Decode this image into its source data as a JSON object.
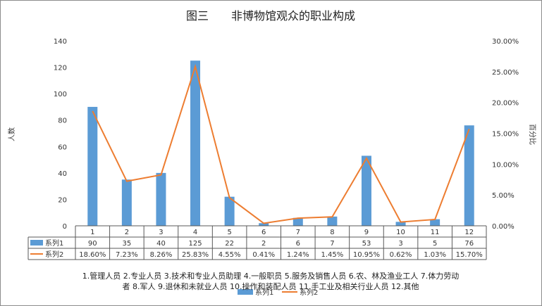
{
  "chart_data": {
    "type": "bar",
    "title": "图三　　非博物馆观众的职业构成",
    "categories": [
      "1",
      "2",
      "3",
      "4",
      "5",
      "6",
      "7",
      "8",
      "9",
      "10",
      "11",
      "12"
    ],
    "series": [
      {
        "name": "系列1",
        "type": "bar",
        "axis": "left",
        "values": [
          90,
          35,
          40,
          125,
          22,
          2,
          6,
          7,
          53,
          3,
          5,
          76
        ],
        "labels": [
          "90",
          "35",
          "40",
          "125",
          "22",
          "2",
          "6",
          "7",
          "53",
          "3",
          "5",
          "76"
        ],
        "color": "#5b9bd5"
      },
      {
        "name": "系列2",
        "type": "line",
        "axis": "right",
        "values": [
          18.6,
          7.23,
          8.26,
          25.83,
          4.55,
          0.41,
          1.24,
          1.45,
          10.95,
          0.62,
          1.03,
          15.7
        ],
        "labels": [
          "18.60%",
          "7.23%",
          "8.26%",
          "25.83%",
          "4.55%",
          "0.41%",
          "1.24%",
          "1.45%",
          "10.95%",
          "0.62%",
          "1.03%",
          "15.70%"
        ],
        "color": "#ed7d31"
      }
    ],
    "ylabel": "人数",
    "ylim": [
      0,
      140
    ],
    "yticks": [
      "0",
      "20",
      "40",
      "60",
      "80",
      "100",
      "120",
      "140"
    ],
    "y2label": "百分比",
    "y2lim": [
      0,
      30
    ],
    "y2ticks": [
      "0.00%",
      "5.00%",
      "10.00%",
      "15.00%",
      "20.00%",
      "25.00%",
      "30.00%"
    ],
    "grid": false,
    "legend": "bottom",
    "caption": [
      "1.管理人员 2.专业人员 3.技术和专业人员助理 4.一般职员 5.服务及销售人员 6.农、林及渔业工人 7.体力劳动",
      "者 8.军人 9.退休和未就业人员 10.操作和装配人员 11.手工业及相关行业人员 12.其他"
    ]
  }
}
